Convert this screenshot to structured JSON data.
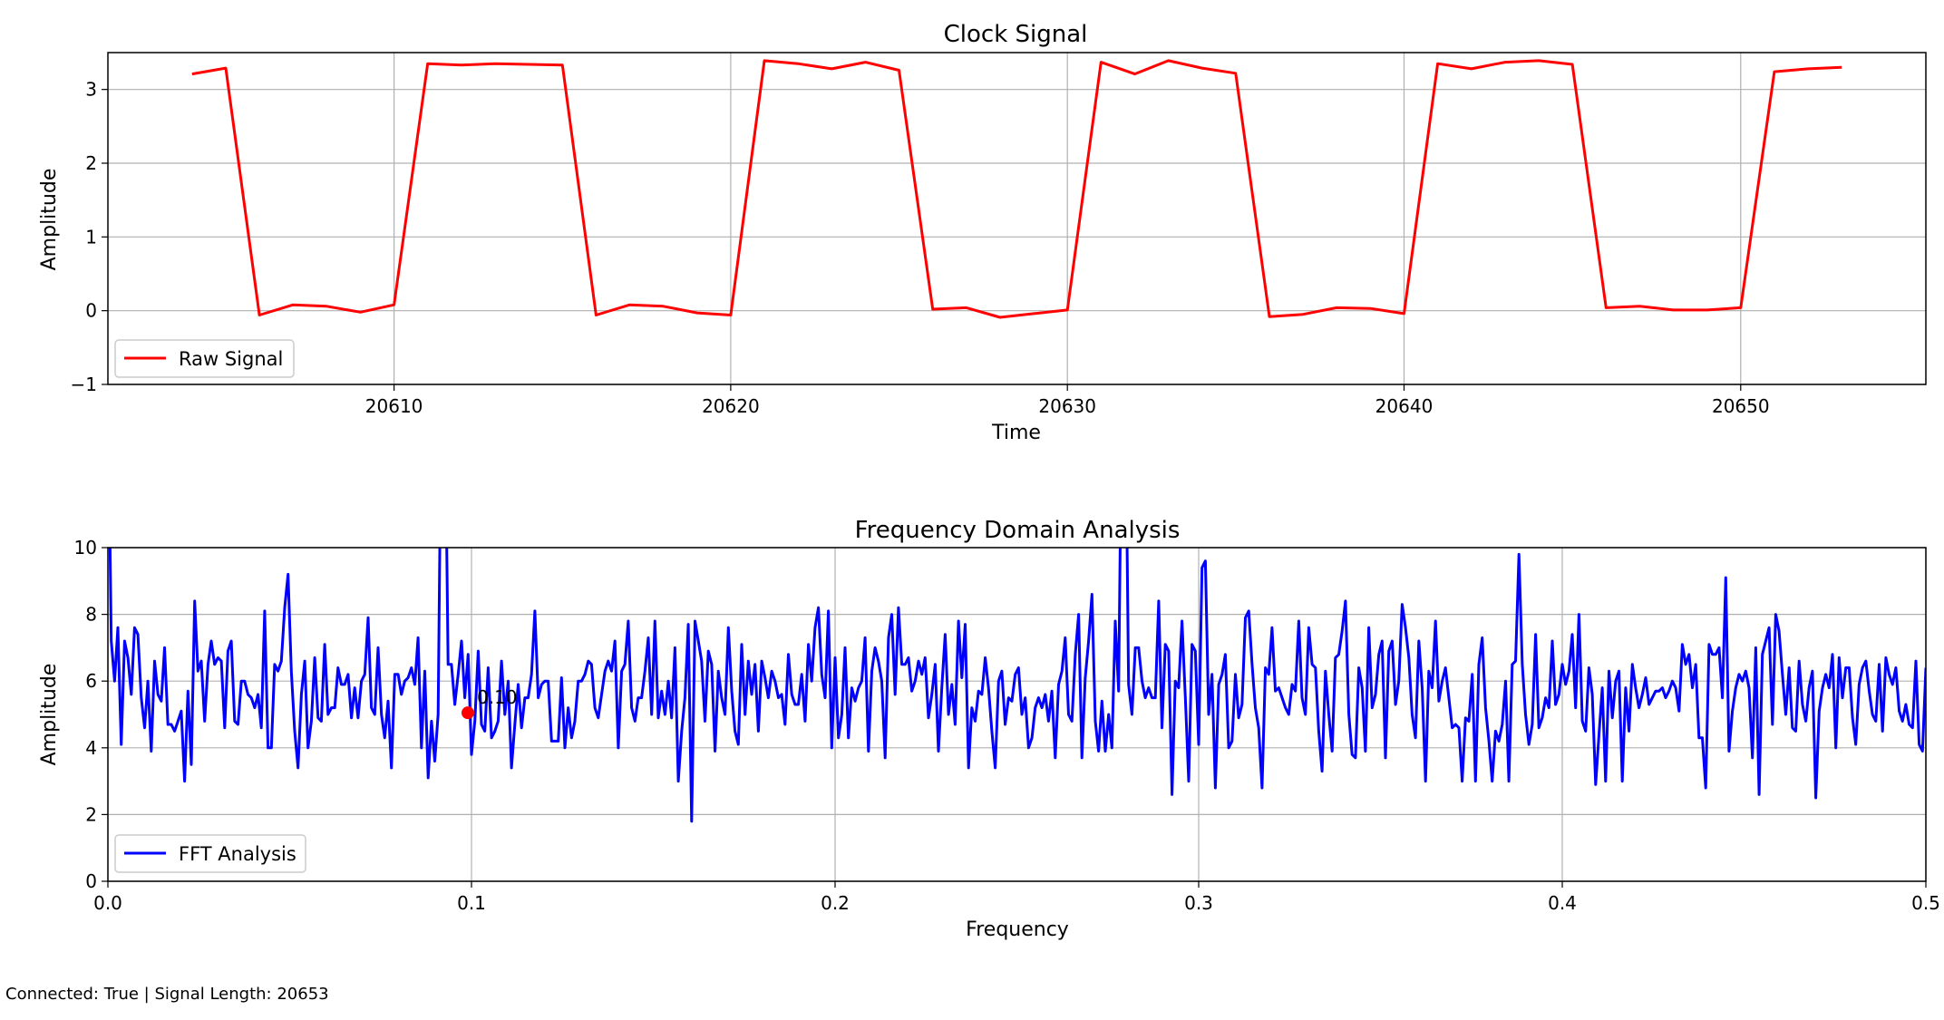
{
  "status_text": "Connected: True | Signal Length: 20653",
  "colors": {
    "raw": "#ff0000",
    "fft": "#0000ff",
    "grid": "#b0b0b0",
    "marker": "#ff0000"
  },
  "chart_data": [
    {
      "type": "line",
      "title": "Clock Signal",
      "xlabel": "Time",
      "ylabel": "Amplitude",
      "xlim": [
        20601.5,
        20655.5
      ],
      "ylim": [
        -1,
        3.5
      ],
      "xticks": [
        20610,
        20620,
        20630,
        20640,
        20650
      ],
      "yticks": [
        -1,
        0,
        1,
        2,
        3
      ],
      "grid": true,
      "legend": "lower-left",
      "series": [
        {
          "name": "Raw Signal",
          "color": "#ff0000",
          "x": [
            20604,
            20605,
            20606,
            20607,
            20608,
            20609,
            20610,
            20611,
            20612,
            20613,
            20614,
            20615,
            20616,
            20617,
            20618,
            20619,
            20620,
            20621,
            20622,
            20623,
            20624,
            20625,
            20626,
            20627,
            20628,
            20629,
            20630,
            20631,
            20632,
            20633,
            20634,
            20635,
            20636,
            20637,
            20638,
            20639,
            20640,
            20641,
            20642,
            20643,
            20644,
            20645,
            20646,
            20647,
            20648,
            20649,
            20650,
            20651,
            20652,
            20653
          ],
          "y": [
            3.21,
            3.29,
            -0.06,
            0.08,
            0.06,
            -0.02,
            0.08,
            3.35,
            3.33,
            3.35,
            3.34,
            3.33,
            -0.06,
            0.08,
            0.06,
            -0.03,
            -0.06,
            3.39,
            3.35,
            3.28,
            3.37,
            3.26,
            0.02,
            0.04,
            -0.09,
            -0.04,
            0.01,
            3.37,
            3.21,
            3.39,
            3.29,
            3.22,
            -0.08,
            -0.05,
            0.04,
            0.03,
            -0.04,
            3.35,
            3.28,
            3.37,
            3.39,
            3.34,
            0.04,
            0.06,
            0.01,
            0.01,
            0.04,
            3.24,
            3.28,
            3.3
          ]
        }
      ]
    },
    {
      "type": "line",
      "title": "Frequency Domain Analysis",
      "xlabel": "Frequency",
      "ylabel": "Amplitude",
      "xlim": [
        0,
        0.5
      ],
      "ylim": [
        0,
        10
      ],
      "xticks": [
        0.0,
        0.1,
        0.2,
        0.3,
        0.4,
        0.5
      ],
      "xtick_labels": [
        "0.0",
        "0.1",
        "0.2",
        "0.3",
        "0.4",
        "0.5"
      ],
      "yticks": [
        0,
        2,
        4,
        6,
        8,
        10
      ],
      "grid": true,
      "legend": "lower-left",
      "annotation": {
        "x": 0.099,
        "y": 5.05,
        "text": "0.10"
      },
      "series": [
        {
          "name": "FFT Analysis",
          "color": "#0000ff",
          "x_start": 0,
          "x_end": 0.5,
          "y": [
            15,
            7.2,
            6.0,
            7.6,
            4.1,
            7.2,
            6.7,
            5.6,
            7.6,
            7.4,
            5.5,
            4.6,
            6.0,
            3.9,
            6.6,
            5.6,
            5.4,
            7.0,
            4.7,
            4.7,
            4.5,
            4.8,
            5.1,
            3.0,
            5.7,
            3.5,
            8.4,
            6.3,
            6.6,
            4.8,
            6.5,
            7.2,
            6.5,
            6.7,
            6.6,
            4.6,
            6.9,
            7.2,
            4.8,
            4.7,
            6.0,
            6.0,
            5.6,
            5.5,
            5.2,
            5.6,
            4.6,
            8.1,
            4.0,
            4.0,
            6.5,
            6.3,
            6.6,
            8.2,
            9.2,
            6.3,
            4.5,
            3.4,
            5.6,
            6.6,
            4.0,
            4.8,
            6.7,
            4.9,
            4.8,
            7.1,
            5.0,
            5.2,
            5.2,
            6.4,
            5.9,
            5.9,
            6.2,
            4.9,
            5.8,
            4.9,
            6.0,
            6.2,
            7.9,
            5.2,
            5.0,
            7.0,
            5.0,
            4.3,
            5.4,
            3.4,
            6.2,
            6.2,
            5.6,
            6.0,
            6.1,
            6.4,
            5.9,
            7.3,
            4.0,
            6.3,
            3.1,
            4.8,
            3.6,
            5.0,
            15,
            15,
            6.5,
            6.5,
            5.3,
            6.2,
            7.2,
            5.5,
            6.8,
            3.8,
            4.8,
            6.9,
            4.7,
            4.5,
            6.4,
            4.3,
            4.5,
            4.8,
            6.6,
            5.0,
            6.0,
            3.4,
            4.7,
            5.9,
            4.6,
            5.5,
            5.5,
            6.2,
            8.1,
            5.5,
            5.9,
            6.0,
            6.0,
            4.2,
            4.2,
            4.2,
            6.1,
            4.0,
            5.2,
            4.3,
            4.8,
            6.0,
            6.0,
            6.2,
            6.6,
            6.5,
            5.2,
            4.9,
            5.6,
            6.3,
            6.6,
            6.3,
            7.2,
            4.0,
            6.3,
            6.5,
            7.8,
            5.2,
            4.8,
            5.5,
            5.5,
            6.3,
            7.3,
            5.0,
            7.8,
            4.9,
            5.7,
            5.0,
            6.0,
            4.9,
            7.0,
            3.0,
            4.5,
            5.5,
            7.7,
            1.8,
            7.8,
            7.2,
            6.6,
            4.8,
            6.9,
            6.5,
            3.9,
            6.3,
            5.5,
            5.0,
            7.6,
            5.7,
            4.5,
            4.1,
            7.1,
            5.0,
            6.6,
            5.6,
            6.5,
            4.5,
            6.6,
            6.1,
            5.5,
            6.3,
            6.0,
            5.5,
            5.6,
            4.7,
            6.8,
            5.6,
            5.3,
            5.3,
            6.2,
            4.8,
            7.1,
            6.0,
            7.6,
            8.2,
            6.2,
            5.5,
            8.1,
            4.0,
            6.7,
            4.3,
            5.0,
            7.0,
            4.3,
            5.8,
            5.4,
            5.8,
            6.0,
            7.3,
            3.9,
            6.3,
            7.0,
            6.6,
            6.0,
            3.7,
            7.3,
            8.0,
            5.6,
            8.2,
            6.5,
            6.5,
            6.7,
            5.7,
            6.0,
            6.6,
            6.2,
            6.7,
            4.9,
            5.6,
            6.5,
            3.9,
            5.8,
            7.4,
            5.0,
            5.9,
            4.7,
            7.8,
            6.1,
            7.7,
            3.4,
            5.2,
            4.8,
            5.7,
            5.6,
            6.7,
            5.8,
            4.5,
            3.4,
            6.0,
            6.3,
            4.7,
            5.5,
            5.4,
            6.2,
            6.4,
            5.0,
            5.5,
            4.0,
            4.3,
            5.2,
            5.5,
            5.2,
            5.6,
            4.8,
            5.7,
            3.7,
            5.9,
            6.3,
            7.3,
            5.0,
            4.8,
            6.8,
            8.0,
            3.7,
            6.1,
            7.2,
            8.6,
            4.8,
            3.9,
            5.4,
            3.9,
            5.0,
            4.0,
            7.8,
            5.7,
            15,
            15,
            5.9,
            5.0,
            7.0,
            7.0,
            6.0,
            5.5,
            5.8,
            5.5,
            5.5,
            8.4,
            4.6,
            7.1,
            6.9,
            2.6,
            6.0,
            5.8,
            7.8,
            5.5,
            3.0,
            7.1,
            6.9,
            4.1,
            9.4,
            9.6,
            5.0,
            6.2,
            2.8,
            5.9,
            6.2,
            6.8,
            4.0,
            4.2,
            6.2,
            4.9,
            5.3,
            7.9,
            8.1,
            6.5,
            5.2,
            4.6,
            2.8,
            6.4,
            6.2,
            7.6,
            5.7,
            5.8,
            5.5,
            5.2,
            5.0,
            5.9,
            5.7,
            7.8,
            5.5,
            5.0,
            7.6,
            6.5,
            6.4,
            4.5,
            3.3,
            6.3,
            5.0,
            3.9,
            6.7,
            6.8,
            7.5,
            8.4,
            5.0,
            3.8,
            3.7,
            6.4,
            5.8,
            3.9,
            7.6,
            5.2,
            5.6,
            6.8,
            7.2,
            3.7,
            6.9,
            7.2,
            5.3,
            6.0,
            8.3,
            7.6,
            6.7,
            5.0,
            4.3,
            7.2,
            5.8,
            3.0,
            6.3,
            5.8,
            7.8,
            5.4,
            6.0,
            6.4,
            5.5,
            4.6,
            4.7,
            4.6,
            3.0,
            4.9,
            4.8,
            6.2,
            3.0,
            6.5,
            7.3,
            5.2,
            4.2,
            3.0,
            4.5,
            4.2,
            4.7,
            6.0,
            3.0,
            6.5,
            6.6,
            9.8,
            6.5,
            5.0,
            4.1,
            4.7,
            7.4,
            4.6,
            4.9,
            5.5,
            5.2,
            7.2,
            5.3,
            5.6,
            6.5,
            5.9,
            6.3,
            7.4,
            5.2,
            8.0,
            4.8,
            4.5,
            6.4,
            5.6,
            2.9,
            4.4,
            5.8,
            3.0,
            6.3,
            4.9,
            6.0,
            6.3,
            3.0,
            5.8,
            4.5,
            6.5,
            5.8,
            5.2,
            5.6,
            6.1,
            5.3,
            5.5,
            5.7,
            5.7,
            5.8,
            5.5,
            5.7,
            6.0,
            5.8,
            5.1,
            7.1,
            6.5,
            6.8,
            5.8,
            6.5,
            4.3,
            4.3,
            2.8,
            7.1,
            6.8,
            6.8,
            7.0,
            5.5,
            9.1,
            3.9,
            5.1,
            5.8,
            6.2,
            6.0,
            6.3,
            5.8,
            3.7,
            7.0,
            2.6,
            6.8,
            7.2,
            7.6,
            4.7,
            8.0,
            7.5,
            6.2,
            5.0,
            6.4,
            4.6,
            4.5,
            6.6,
            5.3,
            4.8,
            5.8,
            6.3,
            2.5,
            5.1,
            5.8,
            6.2,
            5.8,
            6.8,
            4.0,
            6.7,
            5.5,
            6.4,
            6.4,
            4.9,
            4.1,
            5.9,
            6.4,
            6.6,
            5.7,
            5.0,
            4.8,
            6.5,
            4.5,
            6.7,
            6.2,
            5.9,
            6.4,
            5.1,
            4.8,
            5.3,
            4.7,
            4.6,
            6.6,
            4.1,
            3.9,
            6.4
          ]
        }
      ]
    }
  ]
}
